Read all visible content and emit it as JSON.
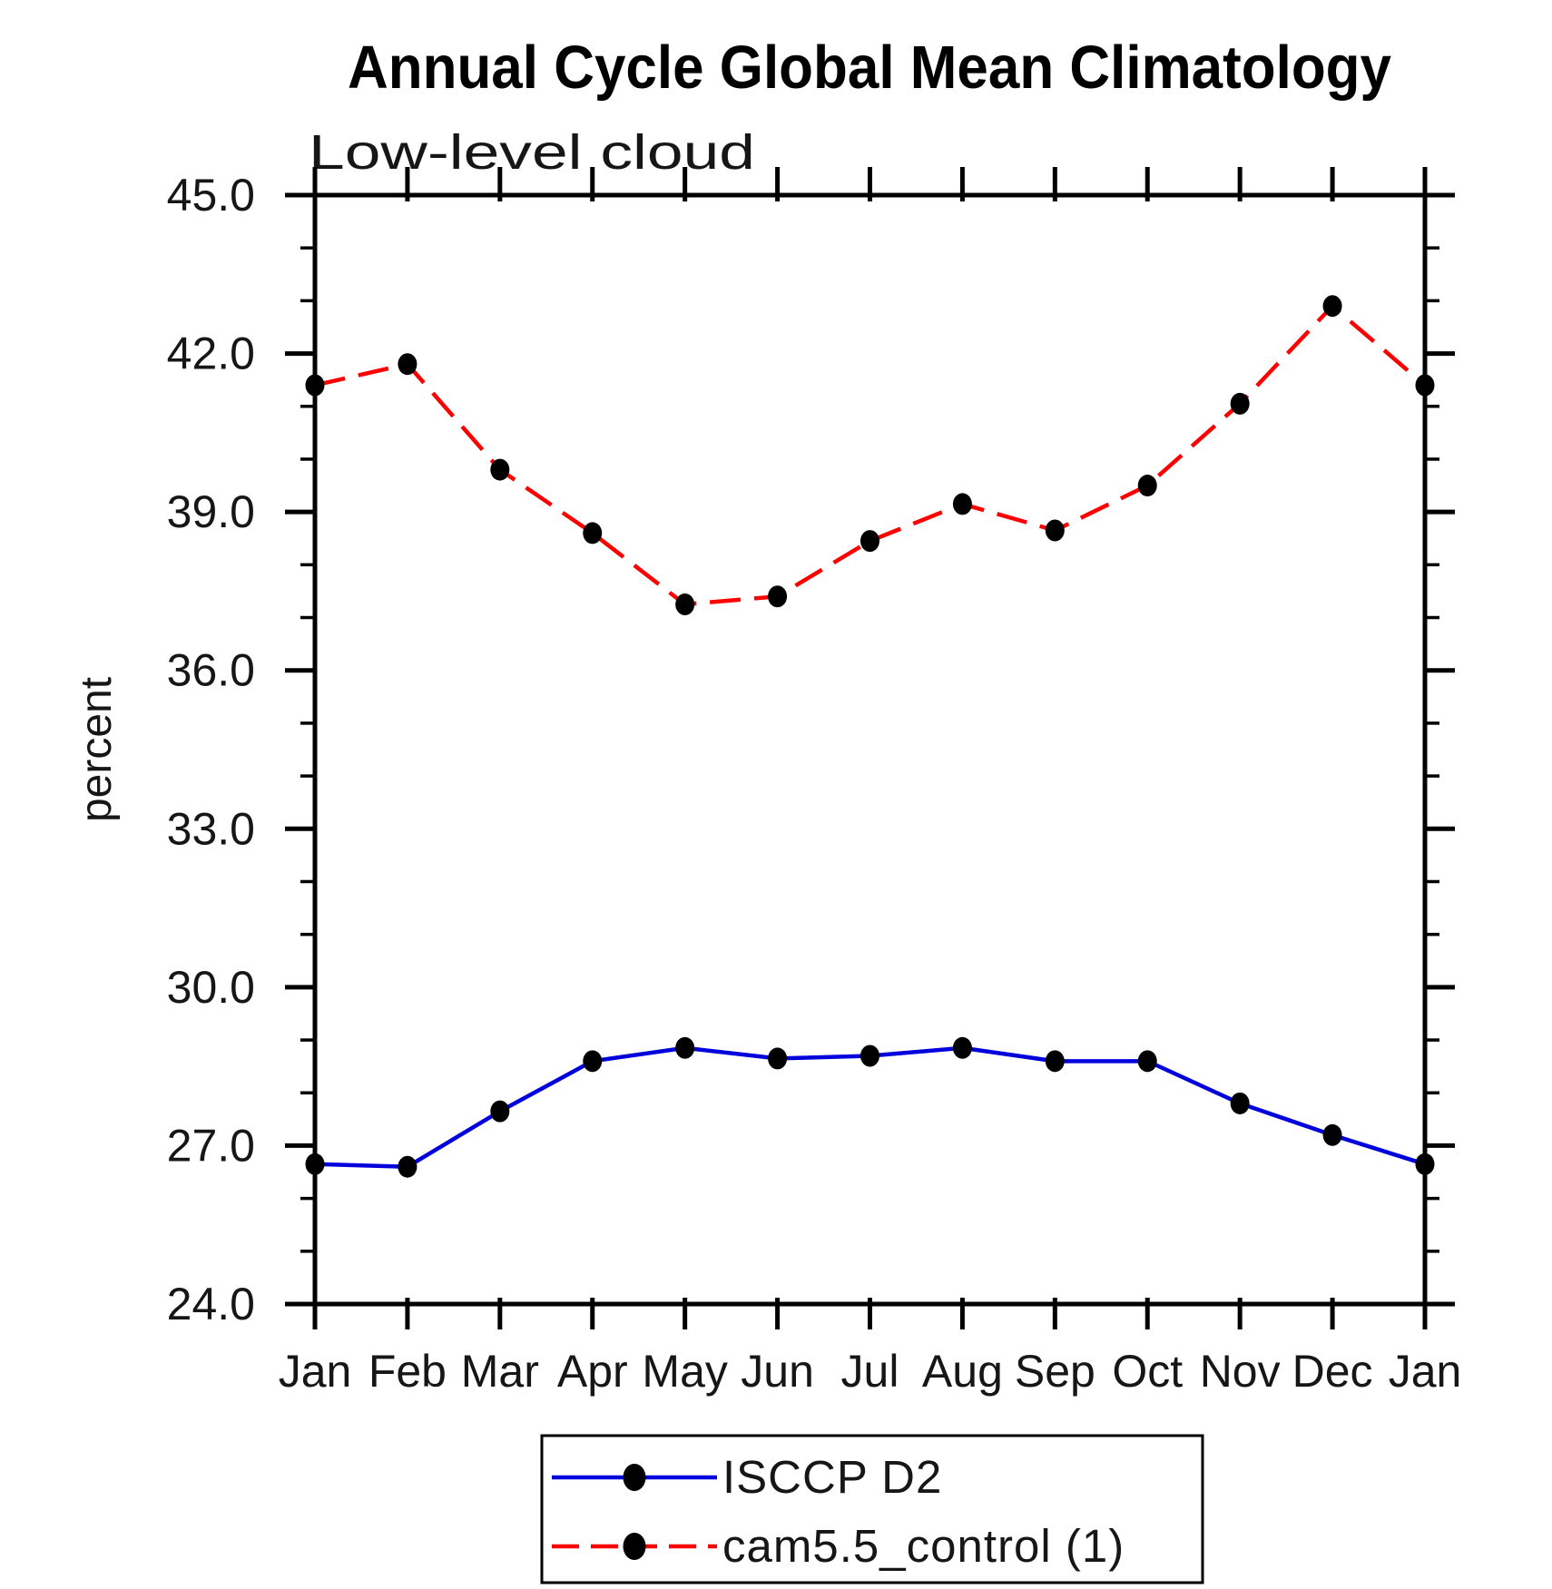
{
  "chart_data": {
    "type": "line",
    "title": "Annual Cycle Global Mean Climatology",
    "subtitle": "Low-level cloud",
    "ylabel": "percent",
    "xlabel": "",
    "categories": [
      "Jan",
      "Feb",
      "Mar",
      "Apr",
      "May",
      "Jun",
      "Jul",
      "Aug",
      "Sep",
      "Oct",
      "Nov",
      "Dec",
      "Jan"
    ],
    "ylim": [
      24.0,
      45.0
    ],
    "ytick_major_step": 3.0,
    "ytick_minor_step": 1.0,
    "ytick_labels": [
      "24.0",
      "27.0",
      "30.0",
      "33.0",
      "36.0",
      "39.0",
      "42.0",
      "45.0"
    ],
    "grid": false,
    "legend_position": "bottom-center",
    "axis_color": "#000000",
    "series": [
      {
        "name": "ISCCP D2",
        "color": "#0000dd",
        "line_style": "solid",
        "marker": "filled-circle",
        "marker_color": "#000000",
        "values": [
          26.65,
          26.6,
          27.65,
          28.6,
          28.85,
          28.65,
          28.7,
          28.85,
          28.6,
          28.6,
          27.8,
          27.2,
          26.65
        ]
      },
      {
        "name": "cam5.5_control (1)",
        "color": "#ff0000",
        "line_style": "dashed",
        "marker": "filled-circle",
        "marker_color": "#000000",
        "values": [
          41.4,
          41.8,
          39.8,
          38.6,
          37.25,
          37.4,
          38.45,
          39.15,
          38.65,
          39.5,
          41.05,
          42.9,
          41.4
        ]
      }
    ]
  }
}
